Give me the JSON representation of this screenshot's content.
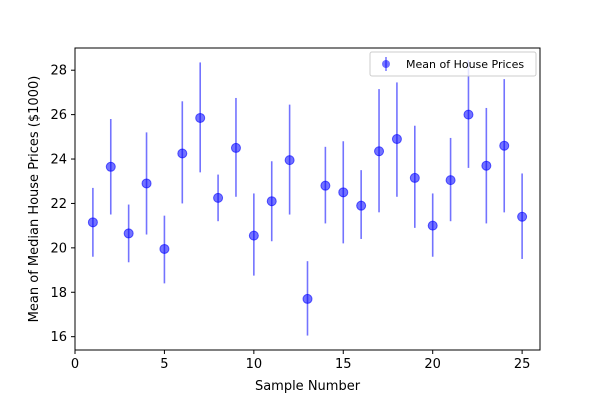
{
  "chart_data": {
    "type": "scatter",
    "title": "",
    "xlabel": "Sample Number",
    "ylabel": "Mean of Median House Prices ($1000)",
    "xlim": [
      0,
      26
    ],
    "ylim": [
      15.4,
      29
    ],
    "xticks": [
      0,
      5,
      10,
      15,
      20,
      25
    ],
    "yticks": [
      16,
      18,
      20,
      22,
      24,
      26,
      28
    ],
    "legend_position": "upper-right",
    "grid": false,
    "series": [
      {
        "name": "Mean of House Prices",
        "color": "#0000ff",
        "x": [
          1,
          2,
          3,
          4,
          5,
          6,
          7,
          8,
          9,
          10,
          11,
          12,
          13,
          14,
          15,
          16,
          17,
          18,
          19,
          20,
          21,
          22,
          23,
          24,
          25
        ],
        "y": [
          21.15,
          23.65,
          20.65,
          22.9,
          19.95,
          24.25,
          25.85,
          22.25,
          24.5,
          20.55,
          22.1,
          23.95,
          17.7,
          22.8,
          22.5,
          21.9,
          24.35,
          24.9,
          23.15,
          21.0,
          23.05,
          26.0,
          23.7,
          24.6,
          21.4
        ],
        "err_low": [
          19.6,
          21.5,
          19.35,
          20.6,
          18.4,
          22.0,
          23.4,
          21.2,
          22.3,
          18.75,
          20.3,
          21.5,
          16.05,
          21.1,
          20.2,
          20.4,
          21.6,
          22.3,
          20.9,
          19.6,
          21.2,
          23.6,
          21.1,
          21.6,
          19.5
        ],
        "err_high": [
          22.7,
          25.8,
          21.95,
          25.2,
          21.45,
          26.6,
          28.35,
          23.3,
          26.75,
          22.45,
          23.9,
          26.45,
          19.4,
          24.55,
          24.8,
          23.5,
          27.15,
          27.45,
          25.5,
          22.45,
          24.95,
          28.45,
          26.3,
          27.6,
          23.35
        ]
      }
    ]
  }
}
